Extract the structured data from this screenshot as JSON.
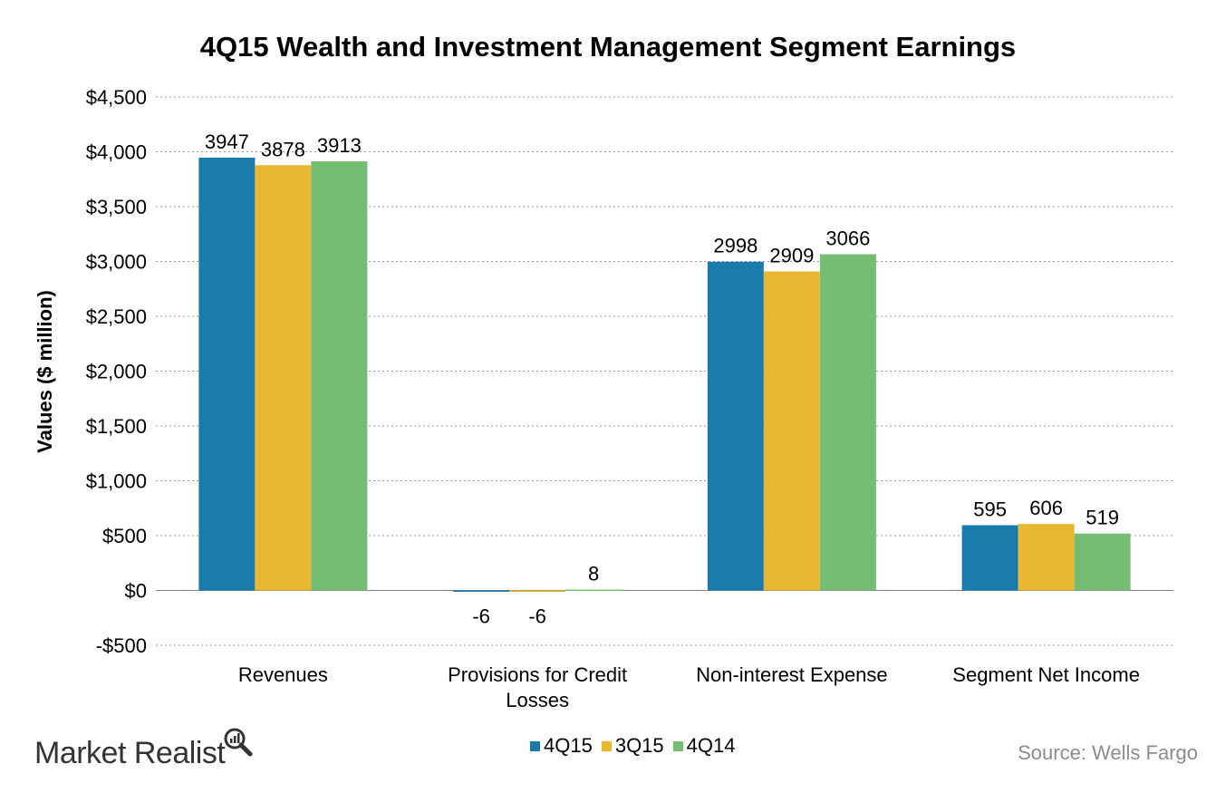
{
  "chart_data": {
    "type": "bar",
    "title": "4Q15 Wealth and Investment Management Segment Earnings",
    "ylabel": "Values ($ million)",
    "xlabel": "",
    "categories": [
      "Revenues",
      "Provisions for Credit Losses",
      "Non-interest Expense",
      "Segment Net Income"
    ],
    "category_lines": [
      [
        "Revenues"
      ],
      [
        "Provisions for Credit",
        "Losses"
      ],
      [
        "Non-interest Expense"
      ],
      [
        "Segment Net Income"
      ]
    ],
    "series": [
      {
        "name": "4Q15",
        "color": "#1a7aab",
        "values": [
          3947,
          -6,
          2998,
          595
        ]
      },
      {
        "name": "3Q15",
        "color": "#e8b930",
        "values": [
          3878,
          -6,
          2909,
          606
        ]
      },
      {
        "name": "4Q14",
        "color": "#74bd72",
        "values": [
          3913,
          8,
          3066,
          519
        ]
      }
    ],
    "ylim": [
      -500,
      4500
    ],
    "yticks": [
      -500,
      0,
      500,
      1000,
      1500,
      2000,
      2500,
      3000,
      3500,
      4000,
      4500
    ],
    "ytick_labels": [
      "-$500",
      "$0",
      "$500",
      "$1,000",
      "$1,500",
      "$2,000",
      "$2,500",
      "$3,000",
      "$3,500",
      "$4,000",
      "$4,500"
    ],
    "grid": true,
    "legend_position": "bottom"
  },
  "footer": {
    "source": "Source: Wells Fargo",
    "brand": "Market Realist"
  }
}
